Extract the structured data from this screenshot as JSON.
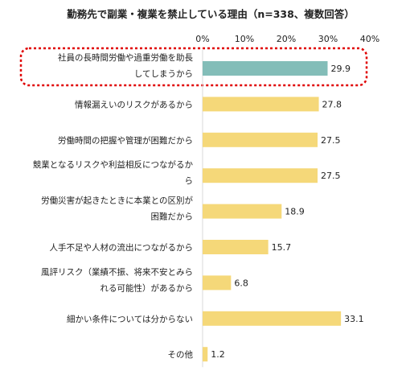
{
  "chart_data": {
    "type": "bar",
    "orientation": "horizontal",
    "title": "勤務先で副業・複業を禁止している理由（n=338、複数回答）",
    "xlim": [
      0,
      40
    ],
    "ticks": [
      "0%",
      "10%",
      "20%",
      "30%",
      "40%"
    ],
    "tick_values": [
      0,
      10,
      20,
      30,
      40
    ],
    "grid": false,
    "categories": [
      [
        "社員の長時間労働や過重労働を助長",
        "してしまうから"
      ],
      [
        "情報漏えいのリスクがあるから"
      ],
      [
        "労働時間の把握や管理が困難だから"
      ],
      [
        "競業となるリスクや利益相反につながるか",
        "ら"
      ],
      [
        "労働災害が起きたときに本業との区別が",
        "困難だから"
      ],
      [
        "人手不足や人材の流出につながるから"
      ],
      [
        "風評リスク（業績不振、将来不安とみら",
        "れる可能性）があるから"
      ],
      [
        "細かい条件については分からない"
      ],
      [
        "その他"
      ]
    ],
    "values": [
      29.9,
      27.8,
      27.5,
      27.5,
      18.9,
      15.7,
      6.8,
      33.1,
      1.2
    ],
    "value_labels": [
      "29.9",
      "27.8",
      "27.5",
      "27.5",
      "18.9",
      "15.7",
      "6.8",
      "33.1",
      "1.2"
    ],
    "highlight_index": 0,
    "colors": {
      "bar": "#f5d879",
      "highlight_bar": "#83bdb8",
      "highlight_border": "#e00000",
      "axis": "#d9d9d9"
    }
  }
}
